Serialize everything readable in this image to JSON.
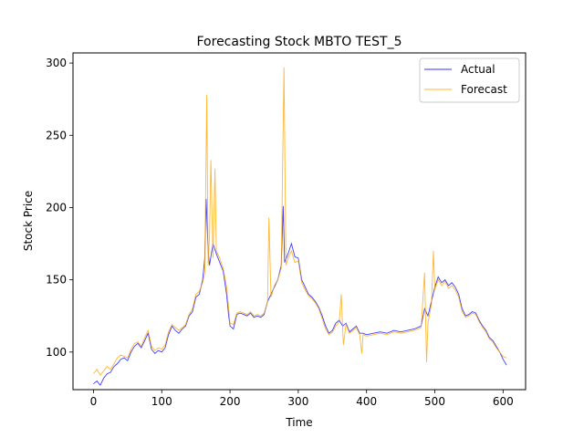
{
  "chart_data": {
    "type": "line",
    "title": "Forecasting Stock MBTO TEST_5",
    "xlabel": "Time",
    "ylabel": "Stock Price",
    "xlim": [
      -30,
      633
    ],
    "ylim": [
      74,
      307
    ],
    "xticks": [
      0,
      100,
      200,
      300,
      400,
      500,
      600
    ],
    "yticks": [
      100,
      150,
      200,
      250,
      300
    ],
    "grid": false,
    "legend_position": "top-right",
    "series": [
      {
        "name": "Actual",
        "color": "#0000ff",
        "points": [
          [
            0,
            78
          ],
          [
            5,
            80
          ],
          [
            10,
            77
          ],
          [
            15,
            82
          ],
          [
            20,
            85
          ],
          [
            25,
            86
          ],
          [
            30,
            90
          ],
          [
            35,
            92
          ],
          [
            40,
            95
          ],
          [
            45,
            96
          ],
          [
            50,
            94
          ],
          [
            55,
            100
          ],
          [
            60,
            104
          ],
          [
            65,
            106
          ],
          [
            70,
            103
          ],
          [
            75,
            108
          ],
          [
            80,
            113
          ],
          [
            85,
            102
          ],
          [
            90,
            99
          ],
          [
            95,
            101
          ],
          [
            100,
            100
          ],
          [
            105,
            103
          ],
          [
            110,
            112
          ],
          [
            115,
            118
          ],
          [
            120,
            115
          ],
          [
            125,
            113
          ],
          [
            130,
            116
          ],
          [
            135,
            118
          ],
          [
            140,
            125
          ],
          [
            145,
            128
          ],
          [
            150,
            138
          ],
          [
            155,
            140
          ],
          [
            160,
            150
          ],
          [
            163,
            165
          ],
          [
            165,
            206
          ],
          [
            168,
            170
          ],
          [
            170,
            160
          ],
          [
            175,
            175
          ],
          [
            180,
            168
          ],
          [
            185,
            162
          ],
          [
            190,
            156
          ],
          [
            195,
            140
          ],
          [
            198,
            125
          ],
          [
            200,
            118
          ],
          [
            205,
            116
          ],
          [
            210,
            126
          ],
          [
            215,
            127
          ],
          [
            220,
            126
          ],
          [
            225,
            125
          ],
          [
            230,
            127
          ],
          [
            235,
            124
          ],
          [
            240,
            125
          ],
          [
            245,
            124
          ],
          [
            250,
            126
          ],
          [
            255,
            135
          ],
          [
            260,
            140
          ],
          [
            265,
            145
          ],
          [
            270,
            150
          ],
          [
            275,
            160
          ],
          [
            278,
            201
          ],
          [
            280,
            162
          ],
          [
            285,
            168
          ],
          [
            290,
            175
          ],
          [
            295,
            166
          ],
          [
            300,
            165
          ],
          [
            305,
            150
          ],
          [
            310,
            145
          ],
          [
            315,
            140
          ],
          [
            320,
            138
          ],
          [
            325,
            135
          ],
          [
            330,
            131
          ],
          [
            335,
            125
          ],
          [
            340,
            118
          ],
          [
            345,
            113
          ],
          [
            350,
            115
          ],
          [
            355,
            120
          ],
          [
            360,
            122
          ],
          [
            365,
            118
          ],
          [
            370,
            120
          ],
          [
            375,
            114
          ],
          [
            380,
            116
          ],
          [
            385,
            118
          ],
          [
            390,
            113
          ],
          [
            395,
            113
          ],
          [
            400,
            112
          ],
          [
            410,
            113
          ],
          [
            420,
            114
          ],
          [
            430,
            113
          ],
          [
            440,
            115
          ],
          [
            450,
            114
          ],
          [
            460,
            115
          ],
          [
            470,
            116
          ],
          [
            480,
            118
          ],
          [
            485,
            130
          ],
          [
            490,
            125
          ],
          [
            495,
            135
          ],
          [
            500,
            145
          ],
          [
            505,
            152
          ],
          [
            510,
            148
          ],
          [
            515,
            150
          ],
          [
            520,
            146
          ],
          [
            525,
            148
          ],
          [
            530,
            145
          ],
          [
            535,
            140
          ],
          [
            540,
            130
          ],
          [
            545,
            125
          ],
          [
            550,
            126
          ],
          [
            555,
            128
          ],
          [
            560,
            127
          ],
          [
            565,
            122
          ],
          [
            570,
            118
          ],
          [
            575,
            115
          ],
          [
            580,
            110
          ],
          [
            585,
            108
          ],
          [
            590,
            104
          ],
          [
            595,
            100
          ],
          [
            600,
            95
          ],
          [
            605,
            91
          ]
        ]
      },
      {
        "name": "Forecast",
        "color": "#ffa500",
        "points": [
          [
            0,
            85
          ],
          [
            5,
            88
          ],
          [
            10,
            84
          ],
          [
            15,
            87
          ],
          [
            20,
            90
          ],
          [
            25,
            88
          ],
          [
            30,
            92
          ],
          [
            35,
            96
          ],
          [
            40,
            98
          ],
          [
            45,
            97
          ],
          [
            50,
            96
          ],
          [
            55,
            102
          ],
          [
            60,
            106
          ],
          [
            65,
            107
          ],
          [
            70,
            104
          ],
          [
            75,
            110
          ],
          [
            80,
            115
          ],
          [
            85,
            104
          ],
          [
            90,
            101
          ],
          [
            95,
            103
          ],
          [
            100,
            102
          ],
          [
            105,
            105
          ],
          [
            110,
            114
          ],
          [
            115,
            119
          ],
          [
            120,
            117
          ],
          [
            125,
            115
          ],
          [
            130,
            117
          ],
          [
            135,
            119
          ],
          [
            140,
            126
          ],
          [
            145,
            130
          ],
          [
            150,
            140
          ],
          [
            155,
            142
          ],
          [
            160,
            148
          ],
          [
            163,
            155
          ],
          [
            166,
            278
          ],
          [
            168,
            160
          ],
          [
            170,
            180
          ],
          [
            172,
            233
          ],
          [
            175,
            165
          ],
          [
            178,
            227
          ],
          [
            180,
            170
          ],
          [
            185,
            165
          ],
          [
            190,
            158
          ],
          [
            195,
            145
          ],
          [
            198,
            130
          ],
          [
            200,
            120
          ],
          [
            205,
            119
          ],
          [
            210,
            127
          ],
          [
            215,
            128
          ],
          [
            220,
            127
          ],
          [
            225,
            126
          ],
          [
            230,
            128
          ],
          [
            235,
            125
          ],
          [
            240,
            126
          ],
          [
            245,
            125
          ],
          [
            250,
            127
          ],
          [
            255,
            135
          ],
          [
            257,
            193
          ],
          [
            260,
            138
          ],
          [
            265,
            146
          ],
          [
            270,
            150
          ],
          [
            275,
            158
          ],
          [
            279,
            297
          ],
          [
            282,
            160
          ],
          [
            285,
            165
          ],
          [
            290,
            170
          ],
          [
            295,
            162
          ],
          [
            300,
            163
          ],
          [
            305,
            148
          ],
          [
            310,
            143
          ],
          [
            315,
            139
          ],
          [
            320,
            137
          ],
          [
            325,
            134
          ],
          [
            330,
            130
          ],
          [
            335,
            123
          ],
          [
            340,
            116
          ],
          [
            345,
            112
          ],
          [
            350,
            114
          ],
          [
            355,
            118
          ],
          [
            360,
            121
          ],
          [
            363,
            140
          ],
          [
            366,
            105
          ],
          [
            370,
            119
          ],
          [
            375,
            113
          ],
          [
            380,
            115
          ],
          [
            385,
            117
          ],
          [
            390,
            112
          ],
          [
            393,
            99
          ],
          [
            395,
            112
          ],
          [
            400,
            111
          ],
          [
            410,
            112
          ],
          [
            420,
            113
          ],
          [
            430,
            112
          ],
          [
            440,
            114
          ],
          [
            450,
            113
          ],
          [
            460,
            114
          ],
          [
            470,
            115
          ],
          [
            480,
            117
          ],
          [
            485,
            155
          ],
          [
            488,
            93
          ],
          [
            490,
            120
          ],
          [
            495,
            133
          ],
          [
            498,
            170
          ],
          [
            500,
            143
          ],
          [
            505,
            150
          ],
          [
            510,
            146
          ],
          [
            515,
            149
          ],
          [
            520,
            144
          ],
          [
            525,
            146
          ],
          [
            530,
            143
          ],
          [
            535,
            138
          ],
          [
            540,
            128
          ],
          [
            545,
            124
          ],
          [
            550,
            125
          ],
          [
            555,
            127
          ],
          [
            560,
            126
          ],
          [
            565,
            121
          ],
          [
            570,
            117
          ],
          [
            575,
            114
          ],
          [
            580,
            109
          ],
          [
            585,
            107
          ],
          [
            590,
            103
          ],
          [
            595,
            100
          ],
          [
            600,
            97
          ],
          [
            605,
            96
          ]
        ]
      }
    ]
  }
}
